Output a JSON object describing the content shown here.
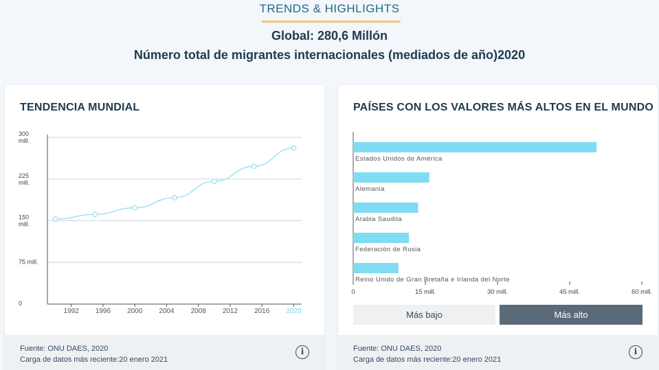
{
  "header": {
    "section_title": "TRENDS & HIGHLIGHTS",
    "global_line": "Global: 280,6 Millón",
    "subtitle": "Número total de migrantes internacionales (mediados de año)2020"
  },
  "trend_card": {
    "title": "TENDENCIA MUNDIAL",
    "source": "Fuente:  ONU DAES, 2020",
    "updated": "Carga de datos más reciente:20 enero 2021",
    "info_glyph": "i"
  },
  "top_card": {
    "title": "PAÍSES CON LOS VALORES MÁS ALTOS EN EL MUNDO",
    "source": "Fuente:  ONU DAES, 2020",
    "updated": "Carga de datos más reciente:20 enero 2021",
    "info_glyph": "i",
    "btn_low": "Más bajo",
    "btn_high": "Más alto"
  },
  "colors": {
    "accent": "#7fdcf2",
    "line": "#9ee2f2",
    "grid": "#cfd6dc",
    "axis": "#555555",
    "highlight": "#7fd0ea"
  },
  "chart_data": [
    {
      "type": "line",
      "title": "TENDENCIA MUNDIAL",
      "x": [
        "1990",
        "1995",
        "2000",
        "2005",
        "2010",
        "2015",
        "2020"
      ],
      "values": [
        152.9,
        161.3,
        173.2,
        191.4,
        220.8,
        247.9,
        280.6
      ],
      "xticks": [
        "1992",
        "1996",
        "2000",
        "2004",
        "2008",
        "2012",
        "2016",
        "2020"
      ],
      "xtick_values": [
        1992,
        1996,
        2000,
        2004,
        2008,
        2012,
        2016,
        2020
      ],
      "highlight_tick": "2020",
      "xrange": [
        1989,
        2021
      ],
      "ylim": [
        0,
        300
      ],
      "yticks": [
        {
          "value": 300,
          "label": [
            "300",
            "mill."
          ]
        },
        {
          "value": 225,
          "label": [
            "225",
            "mill."
          ]
        },
        {
          "value": 150,
          "label": [
            "150",
            "mill."
          ]
        },
        {
          "value": 75,
          "label": [
            "75 mill."
          ]
        },
        {
          "value": 0,
          "label": [
            "0"
          ]
        }
      ],
      "grid": true
    },
    {
      "type": "bar",
      "title": "PAÍSES CON LOS VALORES MÁS ALTOS EN EL MUNDO",
      "orientation": "horizontal",
      "categories": [
        "Estados Unidos de América",
        "Alemania",
        "Arabia Saudita",
        "Federación de Rusia",
        "Reino Unido de Gran Bretaña e Irlanda del Norte"
      ],
      "values": [
        50.6,
        15.8,
        13.5,
        11.6,
        9.4
      ],
      "xlim": [
        0,
        60
      ],
      "xticks": [
        {
          "value": 0,
          "label": "0"
        },
        {
          "value": 15,
          "label": "15 mill."
        },
        {
          "value": 30,
          "label": "30 mill."
        },
        {
          "value": 45,
          "label": "45 mill."
        },
        {
          "value": 60,
          "label": "60 mill."
        }
      ]
    }
  ]
}
